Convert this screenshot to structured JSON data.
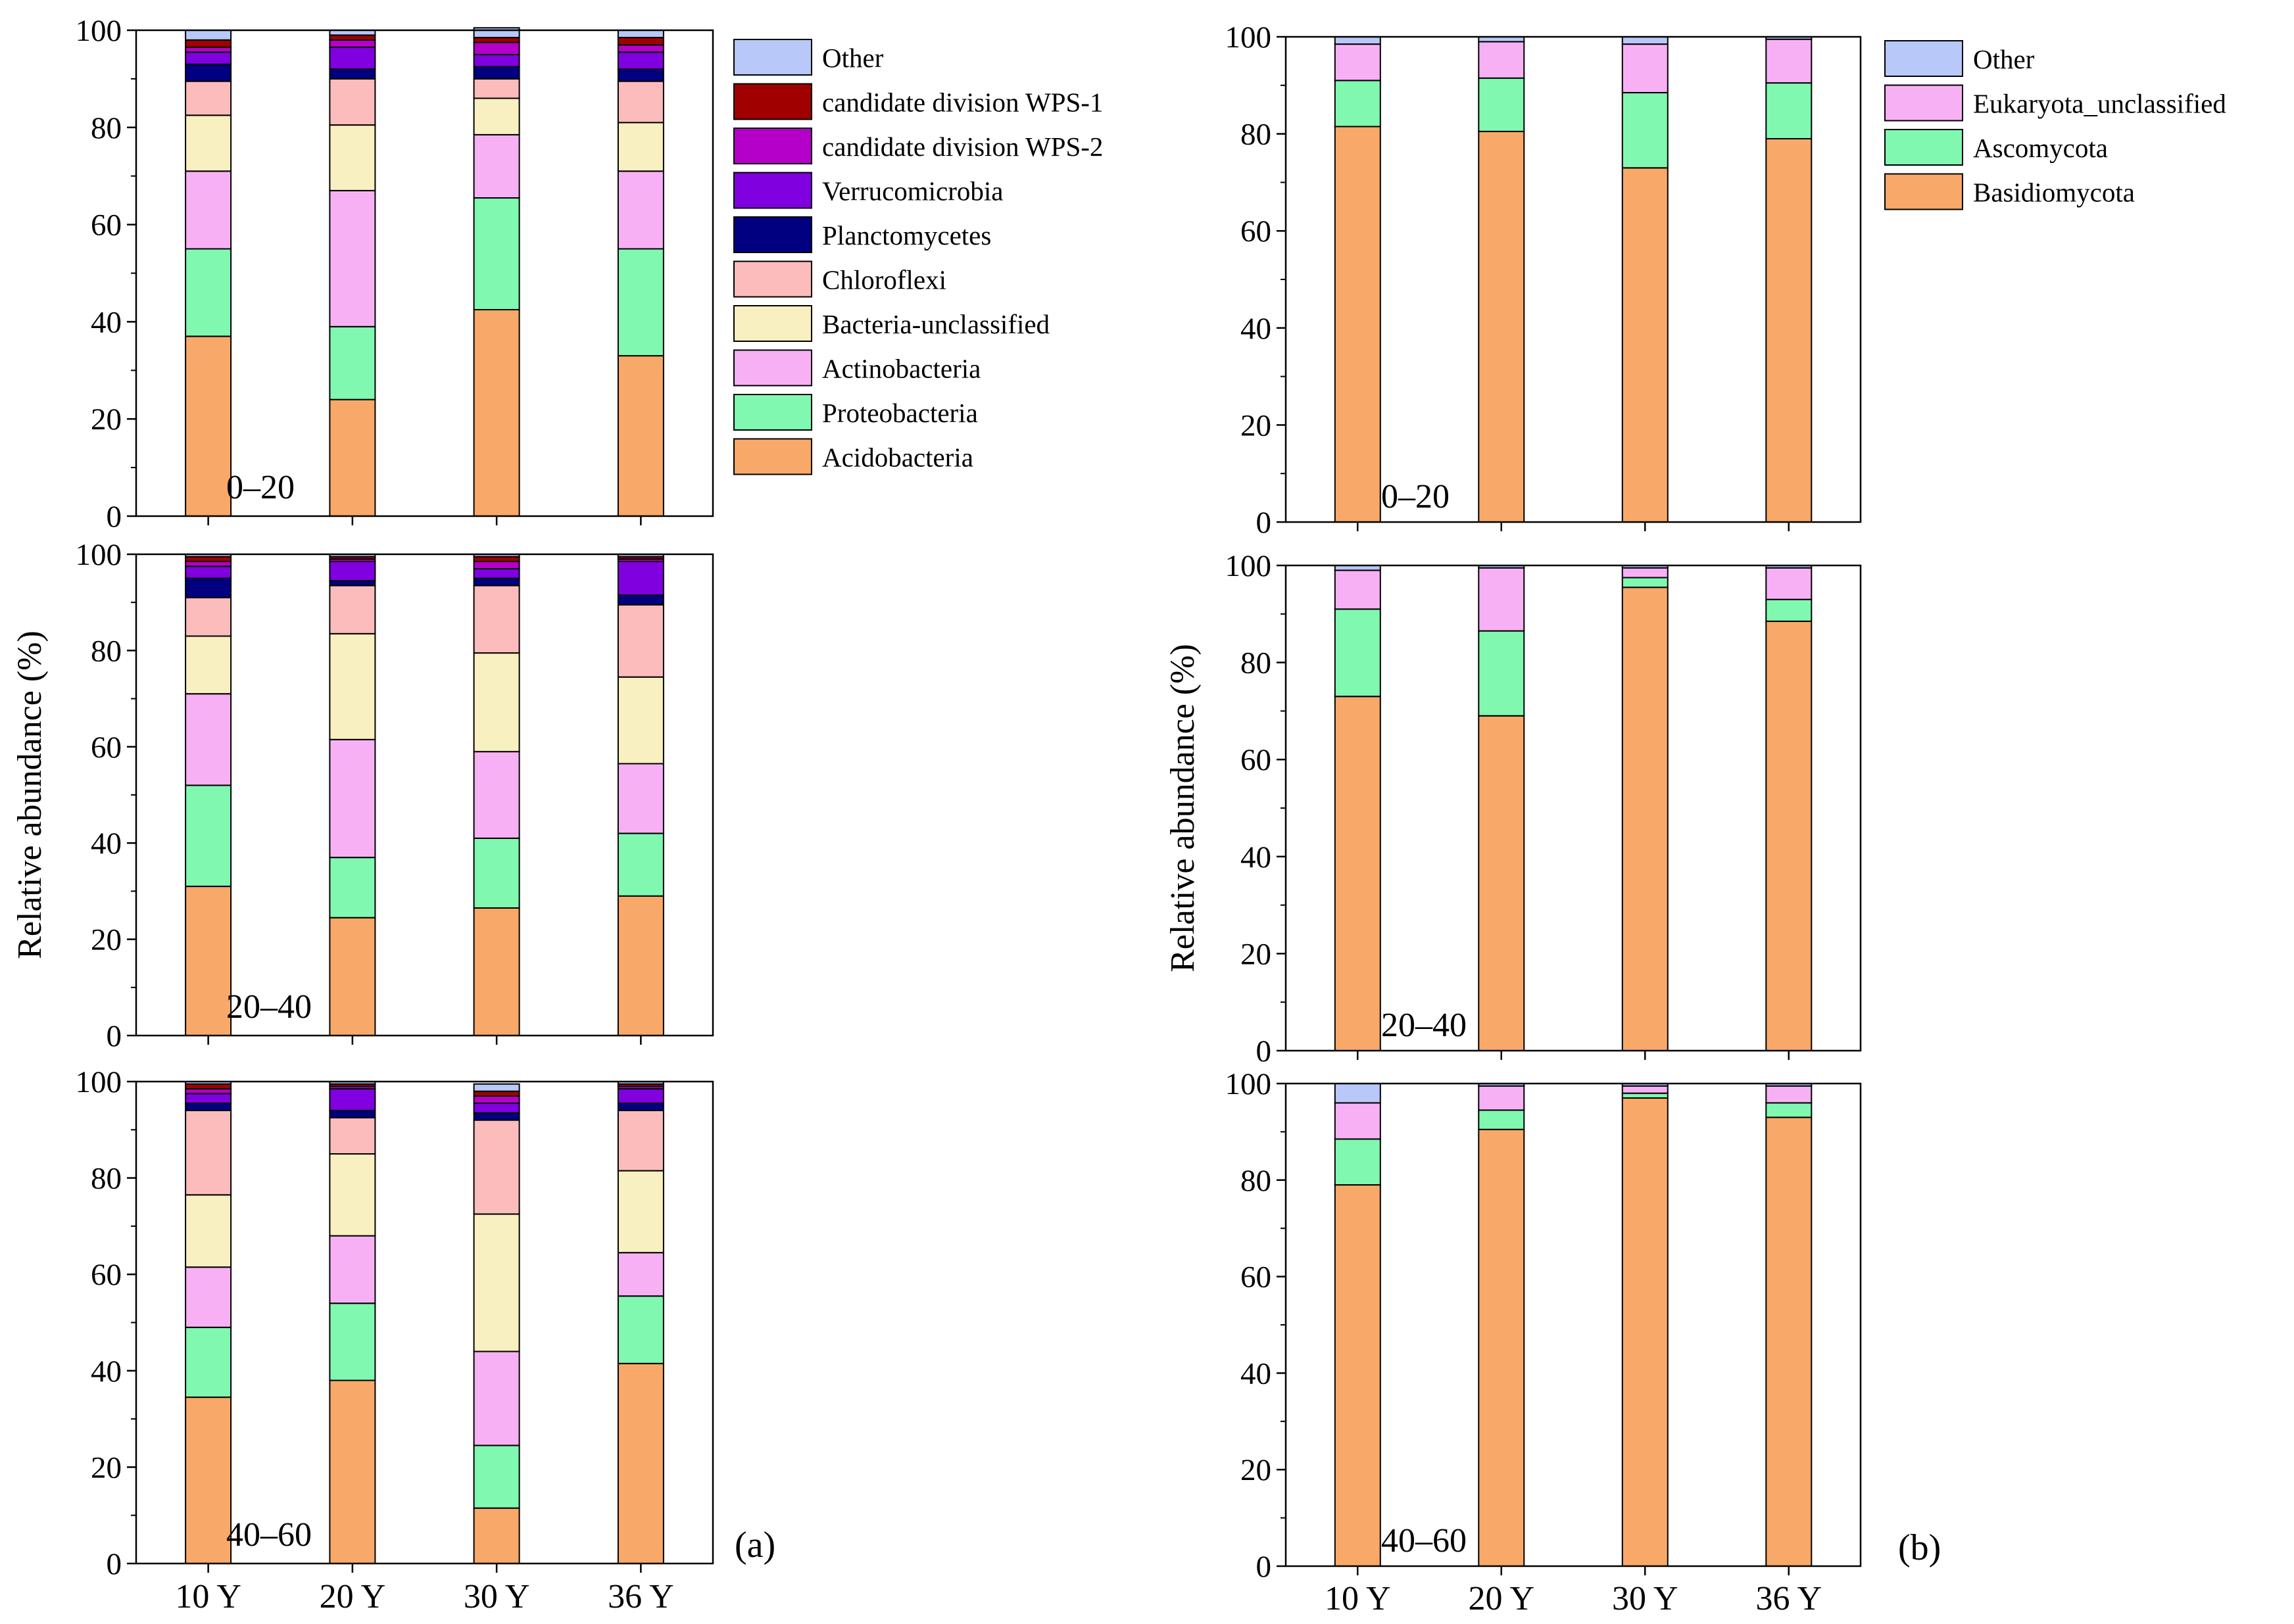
{
  "chart_data": [
    {
      "id": "a",
      "panel_label": "(a)",
      "type": "bar",
      "stacked": true,
      "ylabel": "Relative abundance (%)",
      "ylim": [
        0,
        100
      ],
      "yticks": [
        0,
        20,
        40,
        60,
        80,
        100
      ],
      "categories": [
        "10 Y",
        "20 Y",
        "30 Y",
        "36 Y"
      ],
      "legend": [
        {
          "name": "Other",
          "color": "#b8c8f8"
        },
        {
          "name": "candidate division WPS-1",
          "color": "#a00000"
        },
        {
          "name": "candidate division WPS-2",
          "color": "#b400c8"
        },
        {
          "name": "Verrucomicrobia",
          "color": "#8000e0"
        },
        {
          "name": "Planctomycetes",
          "color": "#000080"
        },
        {
          "name": "Chloroflexi",
          "color": "#fcbcbc"
        },
        {
          "name": "Bacteria-unclassified",
          "color": "#f8f0c0"
        },
        {
          "name": "Actinobacteria",
          "color": "#f8b0f4"
        },
        {
          "name": "Proteobacteria",
          "color": "#80f8b0"
        },
        {
          "name": "Acidobacteria",
          "color": "#f8a868"
        }
      ],
      "panels": [
        {
          "depth": "0–20",
          "series": [
            {
              "name": "Acidobacteria",
              "values": [
                37,
                24,
                42.5,
                33
              ]
            },
            {
              "name": "Proteobacteria",
              "values": [
                18,
                15,
                23,
                22
              ]
            },
            {
              "name": "Actinobacteria",
              "values": [
                16,
                28,
                13,
                16
              ]
            },
            {
              "name": "Bacteria-unclassified",
              "values": [
                11.5,
                13.5,
                7.5,
                10
              ]
            },
            {
              "name": "Chloroflexi",
              "values": [
                7,
                9.5,
                4,
                8.5
              ]
            },
            {
              "name": "Planctomycetes",
              "values": [
                3.5,
                2,
                2.5,
                2.5
              ]
            },
            {
              "name": "Verrucomicrobia",
              "values": [
                2.5,
                4.5,
                2.5,
                3.5
              ]
            },
            {
              "name": "candidate division WPS-2",
              "values": [
                1,
                1.5,
                2.5,
                1.5
              ]
            },
            {
              "name": "candidate division WPS-1",
              "values": [
                1.5,
                1,
                1,
                1.5
              ]
            },
            {
              "name": "Other",
              "values": [
                2,
                1,
                2,
                1.5
              ]
            }
          ]
        },
        {
          "depth": "20–40",
          "series": [
            {
              "name": "Acidobacteria",
              "values": [
                31,
                24.5,
                26.5,
                29
              ]
            },
            {
              "name": "Proteobacteria",
              "values": [
                21,
                12.5,
                14.5,
                13
              ]
            },
            {
              "name": "Actinobacteria",
              "values": [
                19,
                24.5,
                18,
                14.5
              ]
            },
            {
              "name": "Bacteria-unclassified",
              "values": [
                12,
                22,
                20.5,
                18
              ]
            },
            {
              "name": "Chloroflexi",
              "values": [
                8,
                10,
                14,
                15
              ]
            },
            {
              "name": "Planctomycetes",
              "values": [
                4,
                1,
                1.5,
                2
              ]
            },
            {
              "name": "Verrucomicrobia",
              "values": [
                2.5,
                4,
                2,
                7
              ]
            },
            {
              "name": "candidate division WPS-2",
              "values": [
                1,
                0.5,
                1.5,
                0.5
              ]
            },
            {
              "name": "candidate division WPS-1",
              "values": [
                1,
                0.5,
                1,
                0.5
              ]
            },
            {
              "name": "Other",
              "values": [
                0.5,
                0.5,
                0.5,
                0.5
              ]
            }
          ]
        },
        {
          "depth": "40–60",
          "series": [
            {
              "name": "Acidobacteria",
              "values": [
                34.5,
                38,
                11.5,
                41.5
              ]
            },
            {
              "name": "Proteobacteria",
              "values": [
                14.5,
                16,
                13,
                14
              ]
            },
            {
              "name": "Actinobacteria",
              "values": [
                12.5,
                14,
                19.5,
                9
              ]
            },
            {
              "name": "Bacteria-unclassified",
              "values": [
                15,
                17,
                28.5,
                17
              ]
            },
            {
              "name": "Chloroflexi",
              "values": [
                17.5,
                7.5,
                19.5,
                12.5
              ]
            },
            {
              "name": "Planctomycetes",
              "values": [
                1.5,
                1.5,
                1.5,
                1.5
              ]
            },
            {
              "name": "Verrucomicrobia",
              "values": [
                2,
                4.5,
                2,
                3
              ]
            },
            {
              "name": "candidate division WPS-2",
              "values": [
                1,
                0.5,
                1.5,
                0.5
              ]
            },
            {
              "name": "candidate division WPS-1",
              "values": [
                1,
                0.5,
                1,
                0.5
              ]
            },
            {
              "name": "Other",
              "values": [
                0.5,
                0.5,
                1.5,
                0.5
              ]
            }
          ]
        }
      ]
    },
    {
      "id": "b",
      "panel_label": "(b)",
      "type": "bar",
      "stacked": true,
      "ylabel": "Relative abundance (%)",
      "ylim": [
        0,
        100
      ],
      "yticks": [
        0,
        20,
        40,
        60,
        80,
        100
      ],
      "categories": [
        "10 Y",
        "20 Y",
        "30 Y",
        "36 Y"
      ],
      "legend": [
        {
          "name": "Other",
          "color": "#b8c8f8"
        },
        {
          "name": "Eukaryota_unclassified",
          "color": "#f8b0f4"
        },
        {
          "name": "Ascomycota",
          "color": "#80f8b0"
        },
        {
          "name": "Basidiomycota",
          "color": "#f8a868"
        }
      ],
      "panels": [
        {
          "depth": "0–20",
          "series": [
            {
              "name": "Basidiomycota",
              "values": [
                81.5,
                80.5,
                73,
                79
              ]
            },
            {
              "name": "Ascomycota",
              "values": [
                9.5,
                11,
                15.5,
                11.5
              ]
            },
            {
              "name": "Eukaryota_unclassified",
              "values": [
                7.5,
                7.5,
                10,
                9
              ]
            },
            {
              "name": "Other",
              "values": [
                1.5,
                1,
                1.5,
                0.5
              ]
            }
          ]
        },
        {
          "depth": "20–40",
          "series": [
            {
              "name": "Basidiomycota",
              "values": [
                73,
                69,
                95.5,
                88.5
              ]
            },
            {
              "name": "Ascomycota",
              "values": [
                18,
                17.5,
                2,
                4.5
              ]
            },
            {
              "name": "Eukaryota_unclassified",
              "values": [
                8,
                13,
                2,
                6.5
              ]
            },
            {
              "name": "Other",
              "values": [
                1,
                0.5,
                0.5,
                0.5
              ]
            }
          ]
        },
        {
          "depth": "40–60",
          "series": [
            {
              "name": "Basidiomycota",
              "values": [
                79,
                90.5,
                97,
                93
              ]
            },
            {
              "name": "Ascomycota",
              "values": [
                9.5,
                4,
                1,
                3
              ]
            },
            {
              "name": "Eukaryota_unclassified",
              "values": [
                7.5,
                5,
                1.5,
                3.5
              ]
            },
            {
              "name": "Other",
              "values": [
                4,
                0.5,
                0.5,
                0.5
              ]
            }
          ]
        }
      ]
    }
  ]
}
